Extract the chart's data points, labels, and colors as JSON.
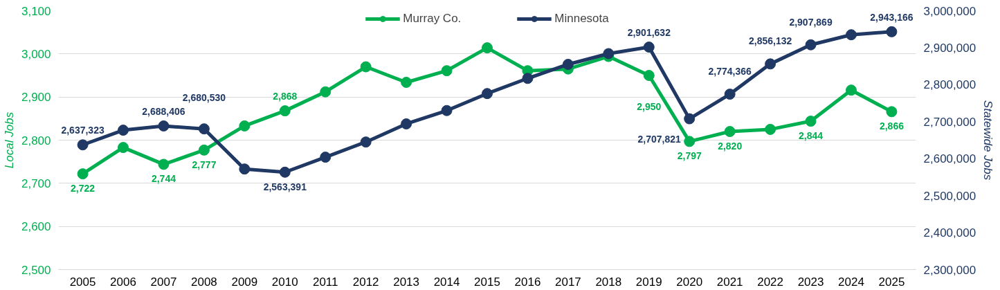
{
  "chart_data": {
    "type": "line",
    "ylabel": "Local Jobs",
    "y2label": "Statewide Jobs",
    "categories": [
      "2005",
      "2006",
      "2007",
      "2008",
      "2009",
      "2010",
      "2011",
      "2012",
      "2013",
      "2014",
      "2015",
      "2016",
      "2017",
      "2018",
      "2019",
      "2020",
      "2021",
      "2022",
      "2023",
      "2024",
      "2025"
    ],
    "series": [
      {
        "name": "Murray Co.",
        "color": "#00b050",
        "values": [
          2722,
          2783,
          2744,
          2777,
          2833,
          2868,
          2912,
          2970,
          2934,
          2961,
          3014,
          2961,
          2965,
          2994,
          2950,
          2797,
          2820,
          2825,
          2844,
          2916,
          2866
        ],
        "value_labels": [
          "2,722",
          null,
          "2,744",
          "2,777",
          null,
          "2,868",
          null,
          null,
          null,
          null,
          null,
          null,
          null,
          null,
          "2,950",
          "2,797",
          "2,820",
          null,
          "2,844",
          null,
          "2,866"
        ]
      },
      {
        "name": "Minnesota",
        "color": "#203864",
        "axis": "y2",
        "values": [
          2637323,
          2677000,
          2688406,
          2680530,
          2572000,
          2563391,
          2604000,
          2645000,
          2694000,
          2730000,
          2776000,
          2817000,
          2855000,
          2884000,
          2901632,
          2707821,
          2774366,
          2856132,
          2907869,
          2935000,
          2943166
        ],
        "value_labels": [
          "2,637,323",
          null,
          "2,688,406",
          "2,680,530",
          null,
          "2,563,391",
          null,
          null,
          null,
          null,
          null,
          null,
          null,
          null,
          "2,901,632",
          "2,707,821",
          "2,774,366",
          "2,856,132",
          "2,907,869",
          null,
          "2,943,166"
        ]
      }
    ],
    "ylim": [
      2500,
      3100
    ],
    "yticks": [
      {
        "value": 2500,
        "label": "2,500"
      },
      {
        "value": 2600,
        "label": "2,600"
      },
      {
        "value": 2700,
        "label": "2,700"
      },
      {
        "value": 2800,
        "label": "2,800"
      },
      {
        "value": 2900,
        "label": "2,900"
      },
      {
        "value": 3000,
        "label": "3,000"
      },
      {
        "value": 3100,
        "label": "3,100"
      }
    ],
    "y2lim": [
      2300000,
      3000000
    ],
    "y2ticks": [
      {
        "value": 2300000,
        "label": "2,300,000"
      },
      {
        "value": 2400000,
        "label": "2,400,000"
      },
      {
        "value": 2500000,
        "label": "2,500,000"
      },
      {
        "value": 2600000,
        "label": "2,600,000"
      },
      {
        "value": 2700000,
        "label": "2,700,000"
      },
      {
        "value": 2800000,
        "label": "2,800,000"
      },
      {
        "value": 2900000,
        "label": "2,900,000"
      },
      {
        "value": 3000000,
        "label": "3,000,000"
      }
    ],
    "grid": "y",
    "legend": "top",
    "marker": "circle",
    "line_style": "solid"
  }
}
